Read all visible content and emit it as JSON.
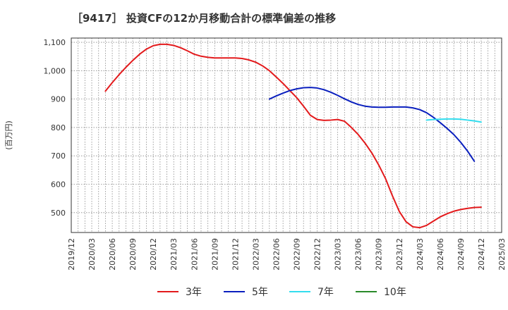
{
  "chart_data": {
    "type": "line",
    "title": "［9417］ 投資CFの12か月移動合計の標準偏差の推移",
    "ylabel": "(百万円)",
    "xlabel": "",
    "ylim": [
      430,
      1115
    ],
    "yticks": [
      500,
      600,
      700,
      800,
      900,
      1000,
      1100
    ],
    "ytick_labels": [
      "500",
      "600",
      "700",
      "800",
      "900",
      "1,000",
      "1,100"
    ],
    "x_start": "2019-12",
    "x_end": "2025-03",
    "xtick_labels": [
      "2019/12",
      "2020/03",
      "2020/06",
      "2020/09",
      "2020/12",
      "2021/03",
      "2021/06",
      "2021/09",
      "2021/12",
      "2022/03",
      "2022/06",
      "2022/09",
      "2022/12",
      "2023/03",
      "2023/06",
      "2023/09",
      "2023/12",
      "2024/03",
      "2024/06",
      "2024/09",
      "2024/12",
      "2025/03"
    ],
    "grid": true,
    "legend_position": "bottom",
    "series": [
      {
        "name": "3年",
        "color": "#e31a1c",
        "points": [
          [
            "2020-05",
            928
          ],
          [
            "2020-06",
            958
          ],
          [
            "2020-07",
            986
          ],
          [
            "2020-08",
            1012
          ],
          [
            "2020-09",
            1036
          ],
          [
            "2020-10",
            1058
          ],
          [
            "2020-11",
            1076
          ],
          [
            "2020-12",
            1088
          ],
          [
            "2021-01",
            1093
          ],
          [
            "2021-02",
            1093
          ],
          [
            "2021-03",
            1089
          ],
          [
            "2021-04",
            1081
          ],
          [
            "2021-05",
            1070
          ],
          [
            "2021-06",
            1058
          ],
          [
            "2021-07",
            1051
          ],
          [
            "2021-08",
            1047
          ],
          [
            "2021-09",
            1045
          ],
          [
            "2021-10",
            1045
          ],
          [
            "2021-11",
            1045
          ],
          [
            "2021-12",
            1045
          ],
          [
            "2022-01",
            1043
          ],
          [
            "2022-02",
            1038
          ],
          [
            "2022-03",
            1030
          ],
          [
            "2022-04",
            1017
          ],
          [
            "2022-05",
            1000
          ],
          [
            "2022-06",
            978
          ],
          [
            "2022-07",
            955
          ],
          [
            "2022-08",
            930
          ],
          [
            "2022-09",
            905
          ],
          [
            "2022-10",
            875
          ],
          [
            "2022-11",
            843
          ],
          [
            "2022-12",
            828
          ],
          [
            "2023-01",
            825
          ],
          [
            "2023-02",
            826
          ],
          [
            "2023-03",
            828
          ],
          [
            "2023-04",
            822
          ],
          [
            "2023-05",
            800
          ],
          [
            "2023-06",
            775
          ],
          [
            "2023-07",
            745
          ],
          [
            "2023-08",
            710
          ],
          [
            "2023-09",
            668
          ],
          [
            "2023-10",
            620
          ],
          [
            "2023-11",
            560
          ],
          [
            "2023-12",
            505
          ],
          [
            "2024-01",
            468
          ],
          [
            "2024-02",
            450
          ],
          [
            "2024-03",
            447
          ],
          [
            "2024-04",
            455
          ],
          [
            "2024-05",
            470
          ],
          [
            "2024-06",
            485
          ],
          [
            "2024-07",
            496
          ],
          [
            "2024-08",
            505
          ],
          [
            "2024-09",
            511
          ],
          [
            "2024-10",
            515
          ],
          [
            "2024-11",
            518
          ],
          [
            "2024-12",
            519
          ]
        ]
      },
      {
        "name": "5年",
        "color": "#0a1fbe",
        "points": [
          [
            "2022-05",
            900
          ],
          [
            "2022-06",
            911
          ],
          [
            "2022-07",
            921
          ],
          [
            "2022-08",
            930
          ],
          [
            "2022-09",
            936
          ],
          [
            "2022-10",
            940
          ],
          [
            "2022-11",
            941
          ],
          [
            "2022-12",
            939
          ],
          [
            "2023-01",
            933
          ],
          [
            "2023-02",
            924
          ],
          [
            "2023-03",
            913
          ],
          [
            "2023-04",
            901
          ],
          [
            "2023-05",
            890
          ],
          [
            "2023-06",
            881
          ],
          [
            "2023-07",
            875
          ],
          [
            "2023-08",
            872
          ],
          [
            "2023-09",
            871
          ],
          [
            "2023-10",
            871
          ],
          [
            "2023-11",
            872
          ],
          [
            "2023-12",
            872
          ],
          [
            "2024-01",
            872
          ],
          [
            "2024-02",
            869
          ],
          [
            "2024-03",
            863
          ],
          [
            "2024-04",
            852
          ],
          [
            "2024-05",
            836
          ],
          [
            "2024-06",
            817
          ],
          [
            "2024-07",
            797
          ],
          [
            "2024-08",
            775
          ],
          [
            "2024-09",
            748
          ],
          [
            "2024-10",
            717
          ],
          [
            "2024-11",
            681
          ]
        ]
      },
      {
        "name": "7年",
        "color": "#33ddee",
        "points": [
          [
            "2024-04",
            826
          ],
          [
            "2024-05",
            828
          ],
          [
            "2024-06",
            829
          ],
          [
            "2024-07",
            830
          ],
          [
            "2024-08",
            830
          ],
          [
            "2024-09",
            829
          ],
          [
            "2024-10",
            826
          ],
          [
            "2024-11",
            823
          ],
          [
            "2024-12",
            819
          ]
        ]
      },
      {
        "name": "10年",
        "color": "#2a8a2a",
        "points": []
      }
    ]
  }
}
